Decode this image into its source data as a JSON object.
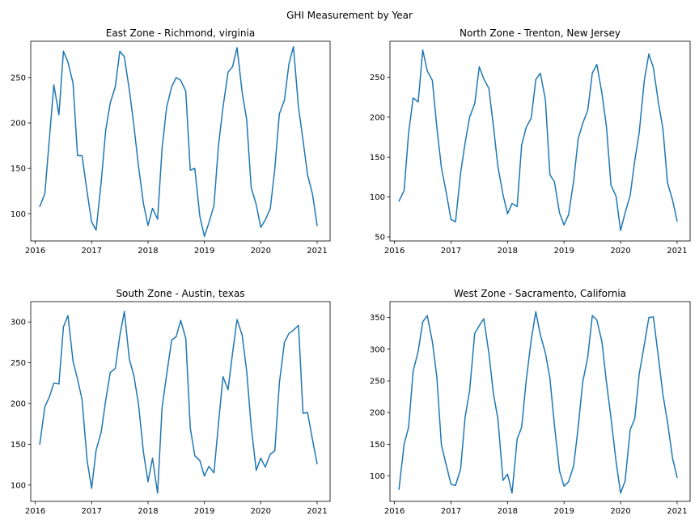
{
  "figure": {
    "title": "GHI Measurement by Year"
  },
  "chart_data": [
    {
      "type": "line",
      "title": "East Zone - Richmond, virginia",
      "xlabel": "",
      "ylabel": "",
      "color": "#1f77b4",
      "xlim": [
        2015.92,
        2021.23
      ],
      "ylim": [
        70,
        290
      ],
      "xticks": [
        2016,
        2017,
        2018,
        2019,
        2020,
        2021
      ],
      "yticks": [
        100,
        150,
        200,
        250
      ],
      "x": [
        2016.08,
        2016.17,
        2016.25,
        2016.33,
        2016.42,
        2016.5,
        2016.58,
        2016.67,
        2016.75,
        2016.83,
        2016.92,
        2017.0,
        2017.08,
        2017.17,
        2017.25,
        2017.33,
        2017.42,
        2017.5,
        2017.58,
        2017.67,
        2017.75,
        2017.83,
        2017.92,
        2018.0,
        2018.08,
        2018.17,
        2018.25,
        2018.33,
        2018.42,
        2018.5,
        2018.58,
        2018.67,
        2018.75,
        2018.83,
        2018.92,
        2019.0,
        2019.08,
        2019.17,
        2019.25,
        2019.33,
        2019.42,
        2019.5,
        2019.58,
        2019.67,
        2019.75,
        2019.83,
        2019.92,
        2020.0,
        2020.08,
        2020.17,
        2020.25,
        2020.33,
        2020.42,
        2020.5,
        2020.58,
        2020.67,
        2020.75,
        2020.83,
        2020.92,
        2021.0
      ],
      "y": [
        108,
        122,
        182,
        242,
        209,
        279,
        267,
        244,
        164,
        164,
        124,
        91,
        82,
        135,
        192,
        222,
        240,
        279,
        273,
        236,
        197,
        153,
        111,
        87,
        106,
        94,
        172,
        217,
        240,
        250,
        247,
        235,
        148,
        150,
        97,
        75,
        90,
        109,
        175,
        217,
        256,
        262,
        283,
        234,
        204,
        129,
        110,
        85,
        93,
        106,
        150,
        210,
        225,
        265,
        284,
        217,
        181,
        143,
        121,
        87
      ]
    },
    {
      "type": "line",
      "title": "North Zone - Trenton, New Jersey",
      "xlabel": "",
      "ylabel": "",
      "color": "#1f77b4",
      "xlim": [
        2015.92,
        2021.23
      ],
      "ylim": [
        45,
        295
      ],
      "xticks": [
        2016,
        2017,
        2018,
        2019,
        2020,
        2021
      ],
      "yticks": [
        50,
        100,
        150,
        200,
        250
      ],
      "x": [
        2016.08,
        2016.17,
        2016.25,
        2016.33,
        2016.42,
        2016.5,
        2016.58,
        2016.67,
        2016.75,
        2016.83,
        2016.92,
        2017.0,
        2017.08,
        2017.17,
        2017.25,
        2017.33,
        2017.42,
        2017.5,
        2017.58,
        2017.67,
        2017.75,
        2017.83,
        2017.92,
        2018.0,
        2018.08,
        2018.17,
        2018.25,
        2018.33,
        2018.42,
        2018.5,
        2018.58,
        2018.67,
        2018.75,
        2018.83,
        2018.92,
        2019.0,
        2019.08,
        2019.17,
        2019.25,
        2019.33,
        2019.42,
        2019.5,
        2019.58,
        2019.67,
        2019.75,
        2019.83,
        2019.92,
        2020.0,
        2020.08,
        2020.17,
        2020.25,
        2020.33,
        2020.42,
        2020.5,
        2020.58,
        2020.67,
        2020.75,
        2020.83,
        2020.92,
        2021.0
      ],
      "y": [
        95,
        108,
        180,
        224,
        219,
        284,
        258,
        246,
        187,
        137,
        104,
        72,
        69,
        130,
        168,
        200,
        217,
        263,
        248,
        236,
        189,
        138,
        103,
        79,
        92,
        88,
        165,
        187,
        199,
        247,
        255,
        222,
        128,
        119,
        80,
        65,
        78,
        120,
        173,
        192,
        209,
        255,
        266,
        230,
        188,
        115,
        101,
        58,
        80,
        102,
        145,
        181,
        246,
        279,
        262,
        218,
        185,
        118,
        96,
        70
      ]
    },
    {
      "type": "line",
      "title": "South Zone - Austin, texas",
      "xlabel": "",
      "ylabel": "",
      "color": "#1f77b4",
      "xlim": [
        2015.92,
        2021.23
      ],
      "ylim": [
        80,
        325
      ],
      "xticks": [
        2016,
        2017,
        2018,
        2019,
        2020,
        2021
      ],
      "yticks": [
        100,
        150,
        200,
        250,
        300
      ],
      "x": [
        2016.08,
        2016.17,
        2016.25,
        2016.33,
        2016.42,
        2016.5,
        2016.58,
        2016.67,
        2016.75,
        2016.83,
        2016.92,
        2017.0,
        2017.08,
        2017.17,
        2017.25,
        2017.33,
        2017.42,
        2017.5,
        2017.58,
        2017.67,
        2017.75,
        2017.83,
        2017.92,
        2018.0,
        2018.08,
        2018.17,
        2018.25,
        2018.33,
        2018.42,
        2018.5,
        2018.58,
        2018.67,
        2018.75,
        2018.83,
        2018.92,
        2019.0,
        2019.08,
        2019.17,
        2019.25,
        2019.33,
        2019.42,
        2019.5,
        2019.58,
        2019.67,
        2019.75,
        2019.83,
        2019.92,
        2020.0,
        2020.08,
        2020.17,
        2020.25,
        2020.33,
        2020.42,
        2020.5,
        2020.58,
        2020.67,
        2020.75,
        2020.83,
        2020.92,
        2021.0
      ],
      "y": [
        150,
        196,
        208,
        225,
        224,
        294,
        308,
        252,
        230,
        205,
        130,
        96,
        143,
        165,
        204,
        238,
        243,
        283,
        313,
        254,
        234,
        200,
        140,
        104,
        133,
        90,
        195,
        235,
        278,
        282,
        302,
        280,
        170,
        136,
        130,
        111,
        123,
        115,
        175,
        233,
        217,
        262,
        303,
        284,
        240,
        172,
        118,
        133,
        122,
        138,
        142,
        225,
        275,
        286,
        290,
        296,
        188,
        189,
        155,
        126
      ]
    },
    {
      "type": "line",
      "title": "West Zone - Sacramento, California",
      "xlabel": "",
      "ylabel": "",
      "color": "#1f77b4",
      "xlim": [
        2015.92,
        2021.23
      ],
      "ylim": [
        60,
        375
      ],
      "xticks": [
        2016,
        2017,
        2018,
        2019,
        2020,
        2021
      ],
      "yticks": [
        100,
        150,
        200,
        250,
        300,
        350
      ],
      "x": [
        2016.08,
        2016.17,
        2016.25,
        2016.33,
        2016.42,
        2016.5,
        2016.58,
        2016.67,
        2016.75,
        2016.83,
        2016.92,
        2017.0,
        2017.08,
        2017.17,
        2017.25,
        2017.33,
        2017.42,
        2017.5,
        2017.58,
        2017.67,
        2017.75,
        2017.83,
        2017.92,
        2018.0,
        2018.08,
        2018.17,
        2018.25,
        2018.33,
        2018.42,
        2018.5,
        2018.58,
        2018.67,
        2018.75,
        2018.83,
        2018.92,
        2019.0,
        2019.08,
        2019.17,
        2019.25,
        2019.33,
        2019.42,
        2019.5,
        2019.58,
        2019.67,
        2019.75,
        2019.83,
        2019.92,
        2020.0,
        2020.08,
        2020.17,
        2020.25,
        2020.33,
        2020.42,
        2020.5,
        2020.58,
        2020.67,
        2020.75,
        2020.83,
        2020.92,
        2021.0
      ],
      "y": [
        79,
        150,
        177,
        265,
        297,
        343,
        353,
        312,
        256,
        149,
        116,
        87,
        85,
        111,
        193,
        235,
        325,
        337,
        348,
        294,
        230,
        190,
        93,
        103,
        73,
        158,
        177,
        250,
        315,
        359,
        323,
        294,
        254,
        180,
        108,
        84,
        91,
        116,
        177,
        248,
        288,
        353,
        346,
        312,
        248,
        192,
        123,
        73,
        92,
        173,
        190,
        261,
        307,
        350,
        351,
        287,
        228,
        185,
        128,
        98
      ]
    }
  ]
}
